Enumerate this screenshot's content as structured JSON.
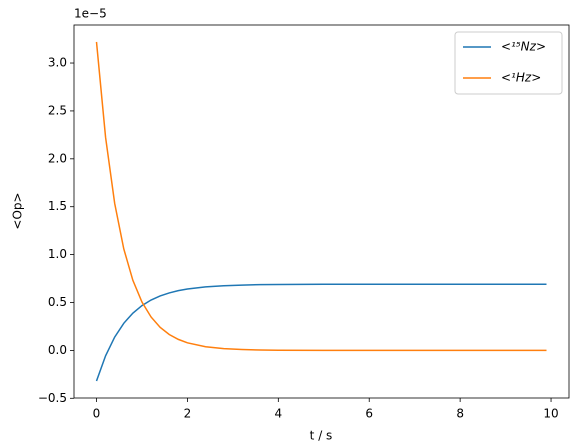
{
  "chart_data": {
    "type": "line",
    "x_label": "t / s",
    "y_label": "<Op>",
    "y_offset_label": "1e−5",
    "x": [
      0,
      0.2,
      0.4,
      0.6,
      0.8,
      1.0,
      1.2,
      1.4,
      1.6,
      1.8,
      2.0,
      2.4,
      2.8,
      3.2,
      3.6,
      4,
      5,
      6,
      7,
      8,
      9,
      9.9
    ],
    "series": [
      {
        "name": "<¹⁵Nz>",
        "color": "#1f77b4",
        "values": [
          -0.32,
          -0.056,
          0.139,
          0.283,
          0.389,
          0.468,
          0.526,
          0.569,
          0.6,
          0.624,
          0.641,
          0.663,
          0.675,
          0.682,
          0.686,
          0.688,
          0.69,
          0.69,
          0.69,
          0.69,
          0.69,
          0.69
        ]
      },
      {
        "name": "<¹Hz>",
        "color": "#ff7f0e",
        "values": [
          3.22,
          2.223,
          1.535,
          1.06,
          0.732,
          0.505,
          0.349,
          0.241,
          0.166,
          0.115,
          0.079,
          0.038,
          0.018,
          0.009,
          0.004,
          0.002,
          0,
          0,
          0,
          0,
          0,
          0
        ]
      }
    ],
    "xlim": [
      -0.495,
      10.395
    ],
    "xticks": [
      0,
      2,
      4,
      6,
      8,
      10
    ],
    "ylim": [
      -0.497,
      3.397
    ],
    "yticks": [
      {
        "value": -0.5,
        "label": "−0.5"
      },
      {
        "value": 0,
        "label": "0.0"
      },
      0.5,
      {
        "value": 1,
        "label": "1.0"
      },
      1.5,
      {
        "value": 2,
        "label": "2.0"
      },
      2.5,
      {
        "value": 3,
        "label": "3.0"
      }
    ],
    "legend": "upper right",
    "grid": false
  }
}
